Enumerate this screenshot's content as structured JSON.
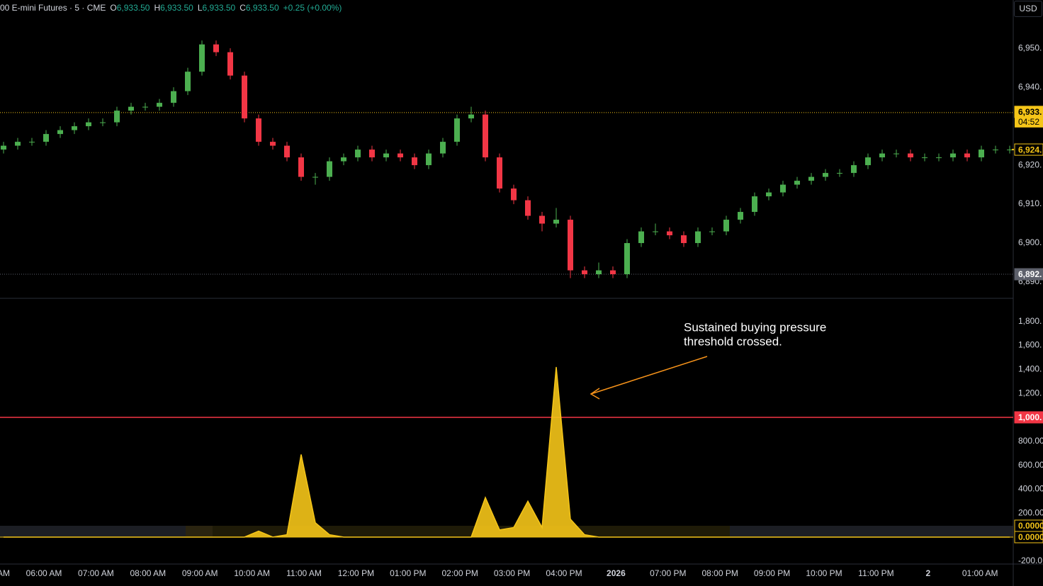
{
  "header": {
    "symbol": "00 E-mini Futures · 5 · CME",
    "ohlc": [
      {
        "key": "O",
        "text": "6,933.50"
      },
      {
        "key": "H",
        "text": "6,933.50"
      },
      {
        "key": "L",
        "text": "6,933.50"
      },
      {
        "key": "C",
        "text": "6,933.50"
      }
    ],
    "change": "+0.25 (+0.00%)",
    "currency": "USD"
  },
  "chart_data": [
    {
      "type": "candlestick",
      "up_color": "#4caf50",
      "down_color": "#f23645",
      "open": [
        6924,
        6925,
        6926,
        6926,
        6928,
        6929,
        6930,
        6931,
        6931,
        6934,
        6935,
        6935,
        6936,
        6939,
        6944,
        6951,
        6949,
        6943,
        6932,
        6926,
        6925,
        6922,
        6917,
        6917,
        6921,
        6922,
        6924,
        6922,
        6923,
        6922,
        6920,
        6923,
        6926,
        6932,
        6933,
        6922,
        6914,
        6911,
        6907,
        6905,
        6906,
        6893,
        6892,
        6893,
        6892,
        6900,
        6903,
        6903,
        6902,
        6900,
        6903,
        6903,
        6906,
        6908,
        6912,
        6913,
        6915,
        6916,
        6917,
        6918,
        6918,
        6920,
        6922,
        6923,
        6923,
        6922,
        6922,
        6922,
        6923,
        6922,
        6924,
        6924
      ],
      "high": [
        6926,
        6927,
        6927,
        6929,
        6930,
        6931,
        6932,
        6932,
        6935,
        6936,
        6936,
        6937,
        6940,
        6945,
        6952,
        6952,
        6950,
        6944,
        6933,
        6927,
        6926,
        6923,
        6918,
        6922,
        6923,
        6925,
        6925,
        6924,
        6924,
        6923,
        6924,
        6927,
        6933,
        6935,
        6934,
        6923,
        6915,
        6912,
        6908,
        6909,
        6907,
        6894,
        6895,
        6894,
        6901,
        6904,
        6905,
        6904,
        6903,
        6904,
        6904,
        6907,
        6909,
        6913,
        6914,
        6916,
        6917,
        6918,
        6919,
        6919,
        6921,
        6923,
        6924,
        6924,
        6924,
        6923,
        6923,
        6924,
        6924,
        6925,
        6925,
        6925
      ],
      "low": [
        6923,
        6924,
        6925,
        6925,
        6927,
        6928,
        6929,
        6930,
        6930,
        6933,
        6934,
        6934,
        6935,
        6938,
        6943,
        6948,
        6942,
        6931,
        6925,
        6924,
        6921,
        6916,
        6915,
        6916,
        6920,
        6921,
        6921,
        6921,
        6921,
        6919,
        6919,
        6922,
        6925,
        6931,
        6921,
        6913,
        6910,
        6906,
        6903,
        6904,
        6891,
        6891,
        6891,
        6891,
        6891,
        6899,
        6902,
        6901,
        6899,
        6899,
        6902,
        6902,
        6905,
        6907,
        6911,
        6912,
        6914,
        6915,
        6916,
        6917,
        6917,
        6919,
        6921,
        6922,
        6921,
        6921,
        6921,
        6921,
        6921,
        6921,
        6923,
        6923
      ],
      "close": [
        6925,
        6926,
        6926,
        6928,
        6929,
        6930,
        6931,
        6931,
        6934,
        6935,
        6935,
        6936,
        6939,
        6944,
        6951,
        6949,
        6943,
        6932,
        6926,
        6925,
        6922,
        6917,
        6917,
        6921,
        6922,
        6924,
        6922,
        6923,
        6922,
        6920,
        6923,
        6926,
        6932,
        6933,
        6922,
        6914,
        6911,
        6907,
        6905,
        6906,
        6893,
        6892,
        6893,
        6892,
        6900,
        6903,
        6903,
        6902,
        6900,
        6903,
        6903,
        6906,
        6908,
        6912,
        6913,
        6915,
        6916,
        6917,
        6918,
        6918,
        6920,
        6922,
        6923,
        6923,
        6922,
        6922,
        6922,
        6923,
        6922,
        6924,
        6924,
        6924
      ],
      "ylim": [
        6886,
        6962.4
      ],
      "yticks": [
        {
          "value": 6890,
          "label": "6,890."
        },
        {
          "value": 6900,
          "label": "6,900."
        },
        {
          "value": 6910,
          "label": "6,910."
        },
        {
          "value": 6920,
          "label": "6,920."
        },
        {
          "value": 6940,
          "label": "6,940."
        },
        {
          "value": 6950,
          "label": "6,950."
        }
      ],
      "price_lines": [
        {
          "value": 6933.5,
          "label": "6,933.",
          "countdown": "04:52",
          "color": "#f5c518"
        },
        {
          "value": 6892,
          "label": "6,892.",
          "color": "#5d606b"
        }
      ],
      "last_badge": {
        "value": 6924,
        "label": "6,924."
      }
    },
    {
      "type": "area",
      "color": "#f5c518",
      "series": [
        {
          "values": [
            0,
            0,
            0,
            0,
            0,
            0,
            0,
            0,
            0,
            0,
            0,
            0,
            0,
            0,
            0,
            0,
            0,
            0,
            50,
            0,
            20,
            690,
            120,
            20,
            0,
            0,
            0,
            0,
            0,
            0,
            0,
            0,
            0,
            0,
            330,
            60,
            80,
            300,
            80,
            1420,
            150,
            20,
            0,
            0,
            0,
            0,
            0,
            0,
            0,
            0,
            0,
            0,
            0,
            0,
            0,
            0,
            0,
            0,
            0,
            0,
            0,
            0,
            0,
            0,
            0,
            0,
            0,
            0,
            0,
            0,
            0,
            0
          ]
        }
      ],
      "ylim": [
        -219,
        1988
      ],
      "yticks": [
        {
          "value": -200,
          "label": "-200.0"
        },
        {
          "value": 200,
          "label": "200.00"
        },
        {
          "value": 400,
          "label": "400.00"
        },
        {
          "value": 600,
          "label": "600.00"
        },
        {
          "value": 800,
          "label": "800.00"
        },
        {
          "value": 1200,
          "label": "1,200."
        },
        {
          "value": 1400,
          "label": "1,400."
        },
        {
          "value": 1600,
          "label": "1,600."
        },
        {
          "value": 1800,
          "label": "1,800."
        }
      ],
      "threshold": {
        "value": 1000,
        "label": "1,000.",
        "color": "#f23645"
      },
      "badges": [
        {
          "value": 0,
          "label": "0.0000"
        },
        {
          "value": 0,
          "label": "0.0000"
        }
      ],
      "annotation": [
        "Sustained buying pressure",
        "threshold crossed."
      ],
      "xtick_labels": [
        "AM",
        "06:00 AM",
        "07:00 AM",
        "08:00 AM",
        "09:00 AM",
        "10:00 AM",
        "11:00 AM",
        "12:00 PM",
        "01:00 PM",
        "02:00 PM",
        "03:00 PM",
        "04:00 PM",
        "2026",
        "07:00 PM",
        "08:00 PM",
        "09:00 PM",
        "10:00 PM",
        "11:00 PM",
        "2",
        "01:00 AM"
      ]
    }
  ]
}
